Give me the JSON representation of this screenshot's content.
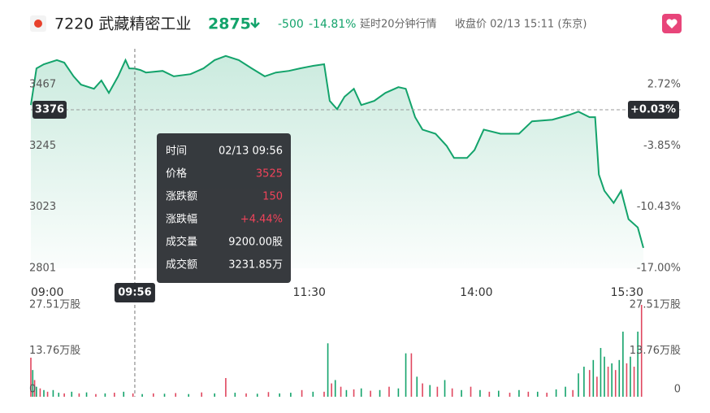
{
  "header": {
    "code_name": "7220 武藏精密工业",
    "price": "2875",
    "change": "-500",
    "change_pct": "-14.81%",
    "delay": "延时20分钟行情",
    "close_label": "收盘价 02/13 15:11 (东京)"
  },
  "chart_data": [
    {
      "type": "line",
      "color": "#13a36b",
      "x": [
        0,
        3,
        7,
        14,
        18,
        23,
        27,
        34,
        38,
        42,
        47,
        51,
        53,
        56,
        59,
        62,
        71,
        77,
        86,
        93,
        99,
        105,
        112,
        119,
        126,
        132,
        139,
        145,
        152,
        158,
        161,
        165,
        169,
        174,
        178,
        185,
        191,
        198,
        202,
        207,
        211,
        218,
        224,
        228,
        235,
        239,
        244,
        253,
        263,
        270,
        281,
        290,
        295,
        301,
        304,
        306,
        309,
        314,
        318,
        322,
        327,
        330
      ],
      "values": [
        3393,
        3526,
        3541,
        3556,
        3547,
        3497,
        3467,
        3452,
        3482,
        3437,
        3497,
        3556,
        3526,
        3525,
        3520,
        3511,
        3517,
        3497,
        3505,
        3526,
        3556,
        3571,
        3556,
        3526,
        3497,
        3511,
        3517,
        3526,
        3535,
        3541,
        3408,
        3378,
        3423,
        3452,
        3393,
        3408,
        3437,
        3458,
        3452,
        3349,
        3304,
        3289,
        3245,
        3201,
        3201,
        3230,
        3304,
        3289,
        3289,
        3334,
        3340,
        3357,
        3369,
        3349,
        3349,
        3141,
        3082,
        3038,
        3082,
        2979,
        2949,
        2875
      ],
      "xlim": [
        0,
        330
      ],
      "xticks": [
        {
          "value": 0,
          "label": "09:00"
        },
        {
          "value": 150,
          "label": "11:30"
        },
        {
          "value": 240,
          "label": "14:00"
        },
        {
          "value": 330,
          "label": "15:30"
        }
      ],
      "ylim": [
        2801,
        3600
      ],
      "yticks": [
        2801,
        3023,
        3245,
        3467
      ],
      "y2lim": [
        -17.0,
        6.66
      ],
      "y2ticks": [
        {
          "value": -17.0,
          "label": "-17.00%"
        },
        {
          "value": -10.43,
          "label": "-10.43%"
        },
        {
          "value": -3.85,
          "label": "-3.85%"
        },
        {
          "value": 2.72,
          "label": "2.72%"
        }
      ],
      "reference": {
        "value": 3376,
        "change": {
          "value": 0.03,
          "label": "+0.03%"
        }
      },
      "crosshair": {
        "value": 56,
        "label": "09:56"
      }
    },
    {
      "type": "bar",
      "x": [
        0,
        1,
        2,
        3,
        5,
        7,
        9,
        12,
        15,
        18,
        22,
        26,
        30,
        35,
        40,
        45,
        50,
        55,
        60,
        66,
        72,
        78,
        85,
        92,
        99,
        105,
        110,
        116,
        122,
        128,
        134,
        140,
        146,
        152,
        158,
        160,
        162,
        164,
        167,
        170,
        174,
        178,
        183,
        188,
        193,
        198,
        202,
        205,
        208,
        211,
        215,
        219,
        223,
        227,
        232,
        237,
        242,
        247,
        252,
        258,
        263,
        268,
        273,
        278,
        283,
        288,
        292,
        295,
        298,
        301,
        303,
        305,
        307,
        309,
        311,
        313,
        315,
        317,
        319,
        321,
        323,
        325,
        327,
        329
      ],
      "values": [
        11.7,
        8,
        5,
        3,
        2.5,
        2,
        1.5,
        2,
        1.2,
        1,
        1.5,
        1,
        1.3,
        0.8,
        1,
        1.2,
        1.5,
        1,
        0.8,
        1,
        0.9,
        1.1,
        0.8,
        1.3,
        1,
        5.6,
        1.2,
        1,
        0.9,
        1.4,
        1,
        1.2,
        2,
        1.5,
        1.5,
        16,
        4,
        5,
        3,
        2,
        2.2,
        2.5,
        1.8,
        2,
        3,
        2.5,
        13,
        13,
        6,
        4,
        3.5,
        3,
        5,
        2.5,
        2,
        3,
        2,
        1.5,
        1.8,
        1.2,
        2,
        1.5,
        1.5,
        1.2,
        2.2,
        3,
        2,
        7,
        9,
        8,
        11,
        6,
        14.6,
        12,
        9,
        10,
        8,
        11,
        19.5,
        10,
        12,
        9,
        19.5,
        27.51
      ],
      "colors": [
        "#e0475f",
        "#13a36b",
        "#e0475f",
        "#13a36b",
        "#e0475f",
        "#13a36b",
        "#e0475f",
        "#13a36b",
        "#13a36b",
        "#e0475f",
        "#13a36b",
        "#e0475f",
        "#13a36b",
        "#e0475f",
        "#13a36b",
        "#e0475f",
        "#13a36b",
        "#e0475f",
        "#13a36b",
        "#e0475f",
        "#13a36b",
        "#e0475f",
        "#13a36b",
        "#e0475f",
        "#13a36b",
        "#e0475f",
        "#13a36b",
        "#e0475f",
        "#13a36b",
        "#e0475f",
        "#13a36b",
        "#13a36b",
        "#e0475f",
        "#13a36b",
        "#e0475f",
        "#13a36b",
        "#e0475f",
        "#13a36b",
        "#e0475f",
        "#13a36b",
        "#e0475f",
        "#13a36b",
        "#e0475f",
        "#13a36b",
        "#e0475f",
        "#13a36b",
        "#13a36b",
        "#e0475f",
        "#13a36b",
        "#e0475f",
        "#13a36b",
        "#e0475f",
        "#13a36b",
        "#e0475f",
        "#13a36b",
        "#e0475f",
        "#13a36b",
        "#e0475f",
        "#13a36b",
        "#e0475f",
        "#13a36b",
        "#e0475f",
        "#13a36b",
        "#e0475f",
        "#13a36b",
        "#13a36b",
        "#e0475f",
        "#13a36b",
        "#13a36b",
        "#e0475f",
        "#13a36b",
        "#e0475f",
        "#13a36b",
        "#13a36b",
        "#e0475f",
        "#13a36b",
        "#e0475f",
        "#13a36b",
        "#13a36b",
        "#e0475f",
        "#13a36b",
        "#e0475f",
        "#13a36b",
        "#e0475f"
      ],
      "xlim": [
        0,
        330
      ],
      "ylim": [
        0,
        27.51
      ],
      "yticks": [
        0,
        {
          "value": 13.76,
          "label": "13.76万股"
        },
        {
          "value": 27.51,
          "label": "27.51万股"
        }
      ]
    }
  ],
  "tooltip": {
    "rows": [
      [
        "时间",
        "02/13 09:56"
      ],
      [
        "价格",
        "3525"
      ],
      [
        "涨跌额",
        "150"
      ],
      [
        "涨跌幅",
        "+4.44%"
      ],
      [
        "成交量",
        "9200.00股"
      ],
      [
        "成交额",
        "3231.85万"
      ]
    ]
  }
}
